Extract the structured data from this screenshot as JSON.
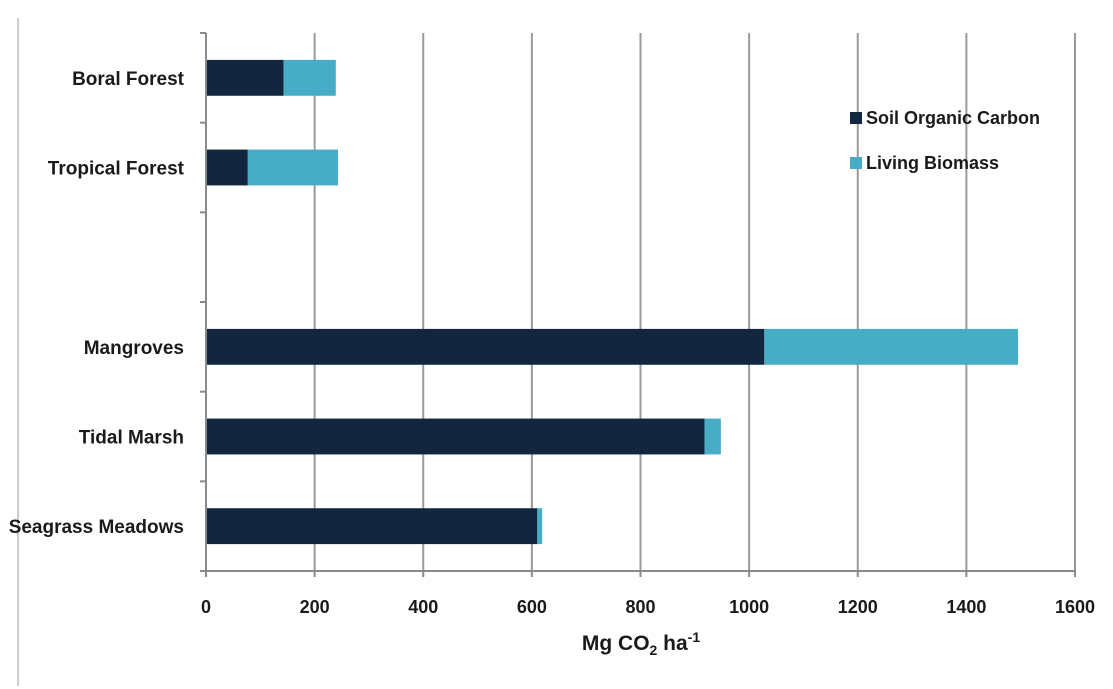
{
  "chart_data": {
    "type": "bar",
    "orientation": "horizontal",
    "stacked": true,
    "categories": [
      "Boral Forest",
      "Tropical Forest",
      "",
      "Mangroves",
      "Tidal Marsh",
      "Seagrass Meadows"
    ],
    "series": [
      {
        "name": "Soil Organic Carbon",
        "color": "#13263f",
        "values": [
          143,
          77,
          null,
          1028,
          918,
          610
        ]
      },
      {
        "name": "Living Biomass",
        "color": "#47adc7",
        "values": [
          96,
          166,
          null,
          467,
          30,
          9
        ]
      }
    ],
    "xlabel": {
      "main": "Mg CO",
      "sub": "2",
      "mid": " ha",
      "sup": "-1"
    },
    "xlim": [
      0,
      1600
    ],
    "xticks": [
      "0",
      "200",
      "400",
      "600",
      "800",
      "1000",
      "1200",
      "1400",
      "1600"
    ],
    "grid": true,
    "legend_position": "top-right"
  }
}
